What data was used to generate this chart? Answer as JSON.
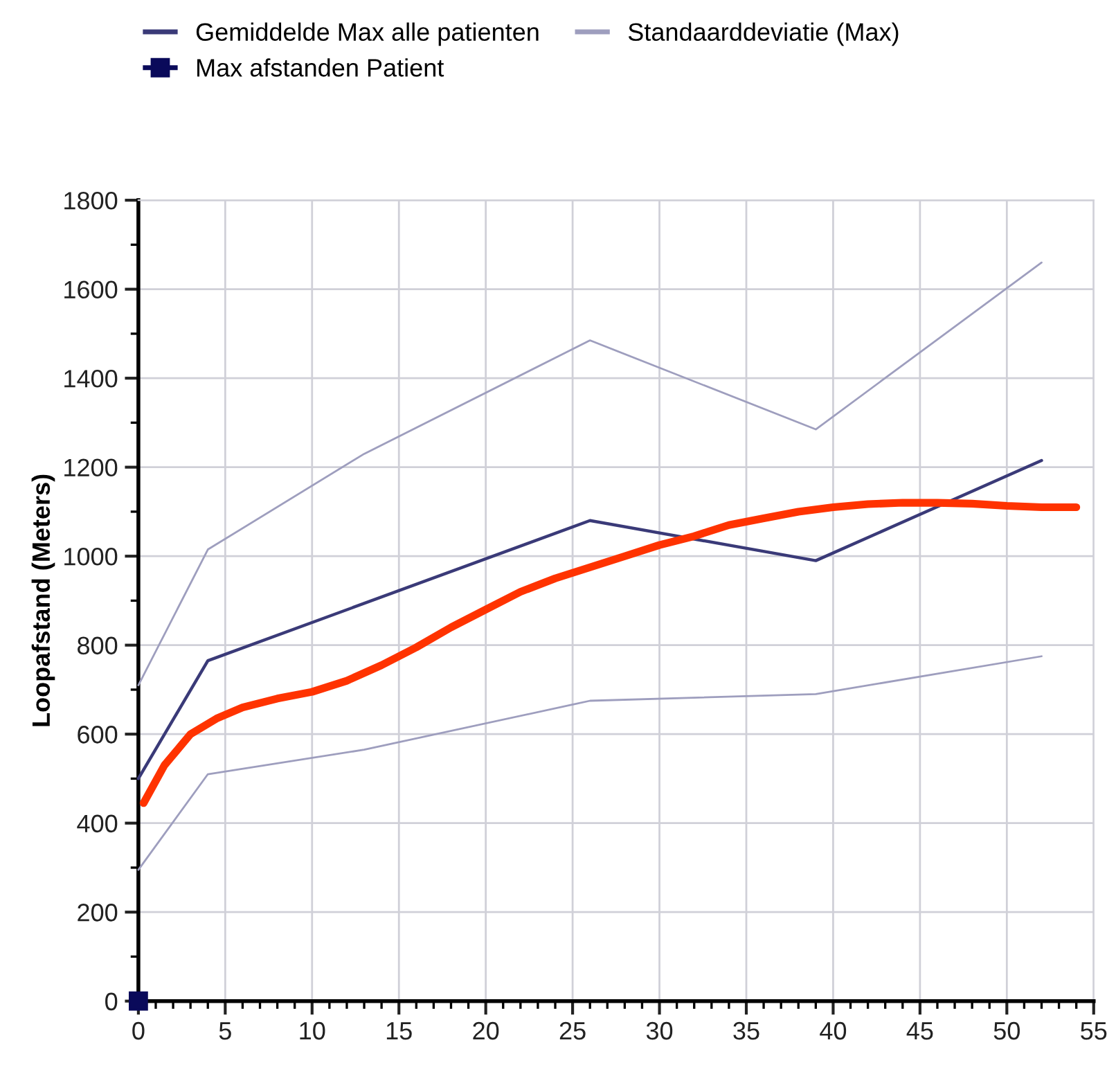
{
  "chart_data": {
    "type": "line",
    "ylabel": "Loopafstand (Meters)",
    "xlim": [
      0,
      55
    ],
    "ylim": [
      0,
      1800
    ],
    "xticks": [
      0,
      5,
      10,
      15,
      20,
      25,
      30,
      35,
      40,
      45,
      50,
      55
    ],
    "yticks": [
      0,
      200,
      400,
      600,
      800,
      1000,
      1200,
      1400,
      1600,
      1800
    ],
    "grid": true,
    "legend": "top left",
    "series": [
      {
        "name": "Gemiddelde Max alle patienten",
        "color": "#3a3a78",
        "x": [
          0,
          4,
          26,
          39,
          52
        ],
        "values": [
          500,
          765,
          1080,
          990,
          1215
        ]
      },
      {
        "name": "Standaarddeviatie (Max)",
        "color": "#9e9ebe",
        "x": [
          0,
          4,
          13,
          26,
          39,
          52
        ],
        "values": [
          710,
          1015,
          1230,
          1485,
          1285,
          1660
        ]
      },
      {
        "color": "#9e9ebe",
        "x": [
          0,
          4,
          13,
          26,
          39,
          52
        ],
        "values": [
          295,
          510,
          565,
          675,
          690,
          775
        ]
      },
      {
        "name": "Max afstanden Patient",
        "color": "#0a0a5a",
        "marker": "square",
        "x": [
          0
        ],
        "values": [
          0
        ]
      },
      {
        "color": "#ff3300",
        "x": [
          0.3,
          1.5,
          3,
          4.5,
          6,
          8,
          10,
          12,
          14,
          16,
          18,
          20,
          22,
          24,
          26,
          28,
          30,
          32,
          34,
          36,
          38,
          40,
          42,
          44,
          46,
          48,
          50,
          52,
          54
        ],
        "values": [
          445,
          530,
          600,
          635,
          660,
          680,
          695,
          720,
          755,
          795,
          840,
          880,
          920,
          950,
          975,
          1000,
          1025,
          1045,
          1070,
          1085,
          1100,
          1110,
          1117,
          1120,
          1120,
          1118,
          1113,
          1110,
          1110
        ]
      }
    ]
  }
}
